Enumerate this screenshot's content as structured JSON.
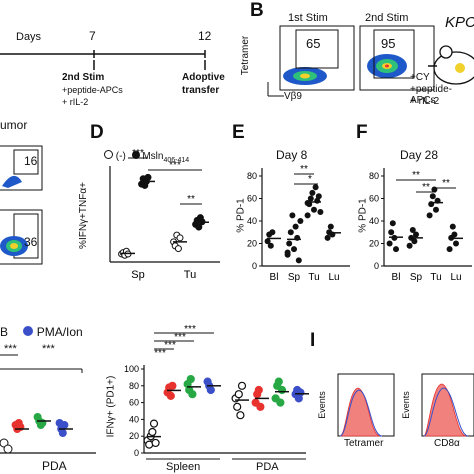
{
  "timeline": {
    "days_label": "Days",
    "day7": "7",
    "day12": "12",
    "stim2_title": "2nd Stim",
    "stim2_l1": "+peptide-APCs",
    "stim2_l2": "+ rIL-2",
    "adoptive_l1": "Adoptive",
    "adoptive_l2": "transfer"
  },
  "panelB": {
    "letter": "B",
    "stim1": "1st Stim",
    "stim2": "2nd Stim",
    "gate1_value": "65",
    "gate2_value": "95",
    "y_label": "Tetramer",
    "x_label": "Vβ9",
    "mouse_label": "KPC",
    "treat_l1": "+CY",
    "treat_l2": "+peptide-APCs",
    "treat_l3": "+ rIL-2"
  },
  "panelC": {
    "title_partial": "umor",
    "gate_top": "16",
    "gate_bottom": "36"
  },
  "panelD": {
    "letter": "D",
    "legend_neg": "(-)",
    "legend_pos": "Msln",
    "legend_pos_sub": "406-414",
    "ylabel": "%IFNγ+TNFα+",
    "sig_1": "***",
    "sig_2": "***",
    "sig_3": "**",
    "chart_data": {
      "type": "scatter",
      "categories": [
        "Sp",
        "Tu"
      ],
      "ylim": [
        0,
        70
      ],
      "series": [
        {
          "name": "(-)",
          "values": [
            [
              6,
              7,
              5,
              8,
              6
            ],
            [
              15,
              12,
              20,
              10,
              18
            ]
          ]
        },
        {
          "name": "Msln 406-414",
          "values": [
            [
              58,
              62,
              57,
              60,
              63
            ],
            [
              28,
              31,
              26,
              33,
              30
            ]
          ]
        }
      ]
    }
  },
  "panelE": {
    "letter": "E",
    "title": "Day 8",
    "ylabel": "% PD-1",
    "sig_1": "**",
    "sig_2": "*",
    "ticks": [
      "80",
      "60",
      "40",
      "20",
      "0"
    ],
    "chart_data": {
      "type": "scatter",
      "categories": [
        "Bl",
        "Sp",
        "Tu",
        "Lu"
      ],
      "ylim": [
        0,
        80
      ],
      "values": [
        [
          22,
          28,
          18,
          30
        ],
        [
          10,
          20,
          30,
          45,
          15,
          35,
          25,
          5,
          40,
          12
        ],
        [
          45,
          55,
          60,
          65,
          50,
          70,
          58,
          62,
          48,
          56
        ],
        [
          25,
          30,
          35,
          28
        ]
      ]
    }
  },
  "panelF": {
    "letter": "F",
    "title": "Day 28",
    "ylabel": "% PD-1",
    "sig_1": "**",
    "sig_2": "**",
    "sig_3": "**",
    "ticks": [
      "80",
      "60",
      "40",
      "20",
      "0"
    ],
    "chart_data": {
      "type": "scatter",
      "categories": [
        "Bl",
        "Sp",
        "Tu",
        "Lu"
      ],
      "ylim": [
        0,
        80
      ],
      "values": [
        [
          20,
          30,
          38,
          25,
          15
        ],
        [
          18,
          25,
          32,
          22,
          28
        ],
        [
          45,
          55,
          62,
          68,
          50,
          58
        ],
        [
          15,
          25,
          35,
          28,
          20
        ]
      ]
    }
  },
  "panelG": {
    "legend_partial": "B",
    "legend_pma": "PMA/Ion",
    "sig_1": "***",
    "sig_2": "***",
    "xlabel": "PDA"
  },
  "panelH": {
    "ylabel": "IFNγ+ (PD1+)",
    "ticks": [
      "100",
      "80",
      "60",
      "40",
      "20",
      "0"
    ],
    "sig_1": "***",
    "sig_2": "***",
    "sig_3": "***",
    "sig_4": "***",
    "group_spleen": "Spleen",
    "group_pda": "PDA",
    "chart_data": {
      "type": "scatter",
      "groups": [
        "Spleen",
        "PDA"
      ],
      "ylim": [
        0,
        100
      ],
      "series_colors": [
        "#000000",
        "#e8322e",
        "#27a844",
        "#3b50c8"
      ],
      "values": [
        [
          [
            15,
            10,
            20,
            25,
            35,
            12
          ],
          [
            72,
            78,
            68,
            80
          ],
          [
            82,
            75,
            88,
            70
          ],
          [
            85,
            80,
            75
          ]
        ],
        [
          [
            65,
            55,
            70,
            45,
            80
          ],
          [
            60,
            70,
            75,
            55
          ],
          [
            65,
            80,
            85,
            60,
            75
          ],
          [
            70,
            75,
            65,
            72
          ]
        ]
      ]
    }
  },
  "panelI": {
    "letter": "I",
    "ylabel1": "Events",
    "ylabel2": "Events",
    "xlabel1": "Tetramer",
    "xlabel2": "CD8α"
  }
}
